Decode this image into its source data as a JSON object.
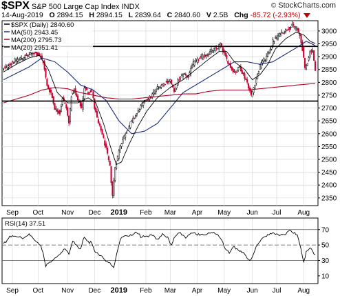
{
  "header": {
    "symbol": "$SPX",
    "name": "S&P 500 Large Cap Index",
    "exchange": "INDX",
    "brand": "StockCharts.com",
    "date": "14-Aug-2019",
    "open_label": "O",
    "open": "2894.15",
    "high_label": "H",
    "high": "2894.15",
    "low_label": "L",
    "low": "2839.64",
    "close_label": "C",
    "close": "2840.60",
    "volume_label": "V",
    "volume": "2.5B",
    "change_label": "Chg",
    "change": "-85.72 (-2.93%)"
  },
  "colors": {
    "candle_up": "#000000",
    "candle_down": "#cc0033",
    "ma50": "#1c2a7a",
    "ma200": "#b00020",
    "ma20": "#000000",
    "rsi_line": "#000000",
    "grid": "#d8d8d8"
  },
  "chart_data": [
    {
      "type": "candlestick",
      "legend": [
        {
          "name": "$SPX (Daily) 2840.60",
          "color": "#000000"
        },
        {
          "name": "MA(50) 2943.45",
          "color": "#1c2a7a"
        },
        {
          "name": "MA(200) 2795.73",
          "color": "#b00020"
        },
        {
          "name": "MA(20) 2951.41",
          "color": "#000000"
        }
      ],
      "legend_position": "top-left",
      "grid": true,
      "y_axis_position": "right",
      "ylim": [
        2320,
        3040
      ],
      "y_ticks": [
        2350,
        2400,
        2450,
        2500,
        2550,
        2600,
        2650,
        2700,
        2750,
        2800,
        2850,
        2900,
        2950,
        3000
      ],
      "x_ticks": [
        {
          "label": "Sep",
          "t": 7
        },
        {
          "label": "Oct",
          "t": 27
        },
        {
          "label": "Nov",
          "t": 50
        },
        {
          "label": "Dec",
          "t": 71
        },
        {
          "label": "2019",
          "t": 90
        },
        {
          "label": "Feb",
          "t": 111
        },
        {
          "label": "Mar",
          "t": 130
        },
        {
          "label": "Apr",
          "t": 151
        },
        {
          "label": "May",
          "t": 172
        },
        {
          "label": "Jun",
          "t": 194
        },
        {
          "label": "Jul",
          "t": 213
        },
        {
          "label": "Aug",
          "t": 234
        }
      ],
      "horizontal_lines": [
        2940,
        2727
      ],
      "close_keypoints": [
        [
          0,
          2850
        ],
        [
          7,
          2880
        ],
        [
          14,
          2895
        ],
        [
          19,
          2905
        ],
        [
          24,
          2915
        ],
        [
          28,
          2905
        ],
        [
          31,
          2880
        ],
        [
          34,
          2785
        ],
        [
          37,
          2760
        ],
        [
          40,
          2700
        ],
        [
          44,
          2680
        ],
        [
          46,
          2740
        ],
        [
          49,
          2700
        ],
        [
          51,
          2640
        ],
        [
          53,
          2750
        ],
        [
          55,
          2770
        ],
        [
          58,
          2730
        ],
        [
          61,
          2700
        ],
        [
          63,
          2780
        ],
        [
          66,
          2760
        ],
        [
          69,
          2770
        ],
        [
          71,
          2700
        ],
        [
          74,
          2640
        ],
        [
          77,
          2600
        ],
        [
          80,
          2540
        ],
        [
          83,
          2470
        ],
        [
          85,
          2360
        ],
        [
          87,
          2470
        ],
        [
          89,
          2510
        ],
        [
          91,
          2555
        ],
        [
          95,
          2600
        ],
        [
          99,
          2640
        ],
        [
          103,
          2670
        ],
        [
          107,
          2705
        ],
        [
          111,
          2730
        ],
        [
          115,
          2745
        ],
        [
          119,
          2775
        ],
        [
          123,
          2790
        ],
        [
          127,
          2800
        ],
        [
          130,
          2810
        ],
        [
          133,
          2760
        ],
        [
          136,
          2805
        ],
        [
          140,
          2835
        ],
        [
          144,
          2820
        ],
        [
          147,
          2870
        ],
        [
          151,
          2885
        ],
        [
          155,
          2900
        ],
        [
          159,
          2910
        ],
        [
          163,
          2925
        ],
        [
          167,
          2935
        ],
        [
          169,
          2950
        ],
        [
          172,
          2910
        ],
        [
          175,
          2880
        ],
        [
          178,
          2850
        ],
        [
          181,
          2840
        ],
        [
          184,
          2860
        ],
        [
          187,
          2830
        ],
        [
          190,
          2800
        ],
        [
          193,
          2750
        ],
        [
          195,
          2780
        ],
        [
          198,
          2830
        ],
        [
          201,
          2880
        ],
        [
          204,
          2890
        ],
        [
          207,
          2920
        ],
        [
          210,
          2960
        ],
        [
          213,
          2975
        ],
        [
          216,
          2990
        ],
        [
          219,
          3000
        ],
        [
          222,
          3010
        ],
        [
          225,
          3020
        ],
        [
          228,
          3015
        ],
        [
          231,
          2980
        ],
        [
          233,
          2930
        ],
        [
          235,
          2850
        ],
        [
          237,
          2880
        ],
        [
          239,
          2920
        ],
        [
          241,
          2925
        ],
        [
          243,
          2840.6
        ]
      ],
      "ma50_keypoints": [
        [
          0,
          2810
        ],
        [
          20,
          2860
        ],
        [
          30,
          2895
        ],
        [
          40,
          2880
        ],
        [
          50,
          2840
        ],
        [
          60,
          2790
        ],
        [
          70,
          2770
        ],
        [
          80,
          2730
        ],
        [
          90,
          2650
        ],
        [
          100,
          2600
        ],
        [
          110,
          2610
        ],
        [
          120,
          2640
        ],
        [
          130,
          2700
        ],
        [
          140,
          2760
        ],
        [
          150,
          2790
        ],
        [
          160,
          2820
        ],
        [
          170,
          2850
        ],
        [
          180,
          2880
        ],
        [
          190,
          2880
        ],
        [
          200,
          2870
        ],
        [
          210,
          2880
        ],
        [
          220,
          2910
        ],
        [
          230,
          2940
        ],
        [
          236,
          2960
        ],
        [
          243,
          2943.45
        ]
      ],
      "ma200_keypoints": [
        [
          0,
          2720
        ],
        [
          20,
          2750
        ],
        [
          30,
          2770
        ],
        [
          40,
          2780
        ],
        [
          50,
          2775
        ],
        [
          60,
          2760
        ],
        [
          70,
          2750
        ],
        [
          80,
          2740
        ],
        [
          90,
          2735
        ],
        [
          100,
          2735
        ],
        [
          110,
          2740
        ],
        [
          120,
          2745
        ],
        [
          130,
          2750
        ],
        [
          140,
          2755
        ],
        [
          150,
          2755
        ],
        [
          160,
          2765
        ],
        [
          170,
          2770
        ],
        [
          180,
          2770
        ],
        [
          190,
          2770
        ],
        [
          200,
          2775
        ],
        [
          210,
          2780
        ],
        [
          220,
          2785
        ],
        [
          230,
          2790
        ],
        [
          243,
          2795.73
        ]
      ],
      "ma20_keypoints": [
        [
          0,
          2840
        ],
        [
          10,
          2870
        ],
        [
          20,
          2895
        ],
        [
          28,
          2905
        ],
        [
          35,
          2850
        ],
        [
          42,
          2760
        ],
        [
          50,
          2720
        ],
        [
          58,
          2720
        ],
        [
          66,
          2740
        ],
        [
          72,
          2720
        ],
        [
          78,
          2640
        ],
        [
          84,
          2540
        ],
        [
          88,
          2480
        ],
        [
          92,
          2490
        ],
        [
          98,
          2560
        ],
        [
          105,
          2630
        ],
        [
          112,
          2690
        ],
        [
          120,
          2740
        ],
        [
          130,
          2780
        ],
        [
          140,
          2810
        ],
        [
          150,
          2850
        ],
        [
          160,
          2890
        ],
        [
          168,
          2920
        ],
        [
          174,
          2920
        ],
        [
          180,
          2880
        ],
        [
          188,
          2850
        ],
        [
          194,
          2810
        ],
        [
          200,
          2830
        ],
        [
          206,
          2870
        ],
        [
          212,
          2930
        ],
        [
          220,
          2970
        ],
        [
          228,
          2995
        ],
        [
          234,
          2985
        ],
        [
          239,
          2960
        ],
        [
          243,
          2951.41
        ]
      ]
    },
    {
      "type": "line",
      "legend": [
        {
          "name": "RSI(14) 37.51",
          "color": "#000000"
        }
      ],
      "ylim": [
        0,
        85
      ],
      "y_ticks": [
        10,
        30,
        50,
        70
      ],
      "reference_lines": [
        70,
        50,
        30
      ],
      "x_ticks": [
        {
          "label": "Sep",
          "t": 7
        },
        {
          "label": "Oct",
          "t": 27
        },
        {
          "label": "Nov",
          "t": 50
        },
        {
          "label": "Dec",
          "t": 71
        },
        {
          "label": "2019",
          "t": 90
        },
        {
          "label": "Feb",
          "t": 111
        },
        {
          "label": "Mar",
          "t": 130
        },
        {
          "label": "Apr",
          "t": 151
        },
        {
          "label": "May",
          "t": 172
        },
        {
          "label": "Jun",
          "t": 194
        },
        {
          "label": "Jul",
          "t": 213
        },
        {
          "label": "Aug",
          "t": 234
        }
      ],
      "rsi_keypoints": [
        [
          0,
          52
        ],
        [
          5,
          60
        ],
        [
          10,
          62
        ],
        [
          15,
          58
        ],
        [
          20,
          64
        ],
        [
          25,
          55
        ],
        [
          28,
          52
        ],
        [
          31,
          40
        ],
        [
          33,
          22
        ],
        [
          36,
          28
        ],
        [
          40,
          32
        ],
        [
          45,
          40
        ],
        [
          48,
          45
        ],
        [
          51,
          38
        ],
        [
          54,
          55
        ],
        [
          57,
          50
        ],
        [
          60,
          45
        ],
        [
          63,
          60
        ],
        [
          66,
          55
        ],
        [
          69,
          52
        ],
        [
          72,
          40
        ],
        [
          76,
          35
        ],
        [
          80,
          30
        ],
        [
          84,
          24
        ],
        [
          86,
          20
        ],
        [
          89,
          45
        ],
        [
          92,
          60
        ],
        [
          96,
          62
        ],
        [
          100,
          64
        ],
        [
          104,
          66
        ],
        [
          108,
          60
        ],
        [
          112,
          62
        ],
        [
          116,
          64
        ],
        [
          120,
          58
        ],
        [
          124,
          63
        ],
        [
          128,
          60
        ],
        [
          131,
          50
        ],
        [
          134,
          62
        ],
        [
          138,
          66
        ],
        [
          142,
          60
        ],
        [
          146,
          66
        ],
        [
          150,
          64
        ],
        [
          154,
          62
        ],
        [
          158,
          64
        ],
        [
          162,
          66
        ],
        [
          166,
          64
        ],
        [
          170,
          58
        ],
        [
          173,
          45
        ],
        [
          176,
          40
        ],
        [
          180,
          48
        ],
        [
          184,
          42
        ],
        [
          188,
          38
        ],
        [
          192,
          30
        ],
        [
          194,
          35
        ],
        [
          198,
          50
        ],
        [
          202,
          60
        ],
        [
          206,
          62
        ],
        [
          210,
          66
        ],
        [
          214,
          64
        ],
        [
          218,
          62
        ],
        [
          222,
          68
        ],
        [
          226,
          66
        ],
        [
          229,
          62
        ],
        [
          232,
          45
        ],
        [
          234,
          28
        ],
        [
          236,
          40
        ],
        [
          239,
          48
        ],
        [
          241,
          42
        ],
        [
          243,
          37.51
        ]
      ]
    }
  ]
}
